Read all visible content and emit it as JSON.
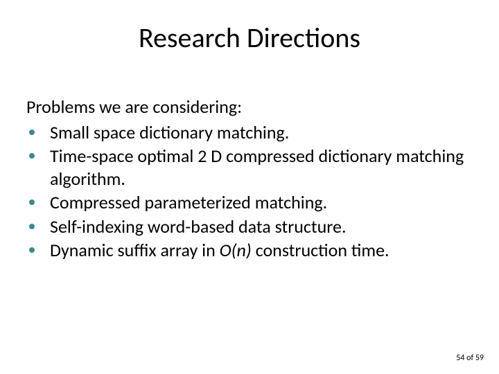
{
  "slide": {
    "title": "Research Directions",
    "intro": "Problems we are considering:",
    "bullets": [
      {
        "text": "Small space dictionary matching."
      },
      {
        "text": "Time-space optimal 2 D compressed dictionary matching algorithm."
      },
      {
        "text": "Compressed parameterized matching."
      },
      {
        "text": "Self-indexing word-based data structure."
      },
      {
        "pre": "Dynamic suffix array in ",
        "em": "O(n)",
        "post": " construction time."
      }
    ],
    "footer": {
      "page": "54",
      "sep": " of ",
      "total": "59"
    },
    "style": {
      "bullet_color": "#3a8a8c",
      "title_fontsize": 40,
      "body_fontsize": 26,
      "footer_fontsize": 12,
      "background": "#ffffff",
      "text_color": "#000000"
    }
  }
}
